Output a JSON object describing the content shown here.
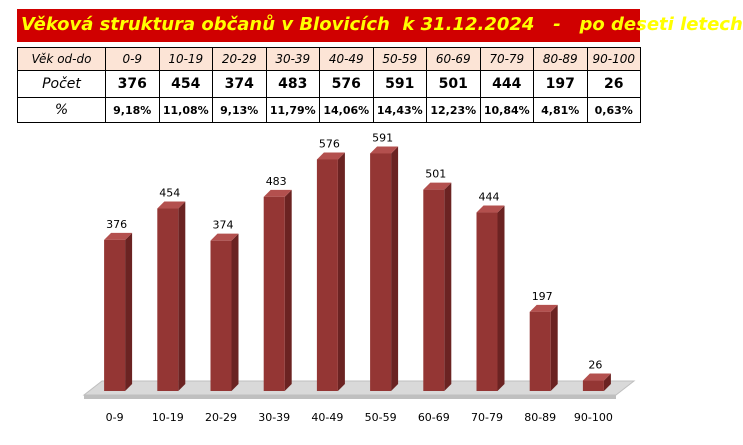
{
  "title": "Věková struktura občanů v Blovicích  k 31.12.2024   -   po deseti letech",
  "table": {
    "head_label": "Věk od-do",
    "count_label": "Počet",
    "pct_label": "%",
    "groups": [
      "0-9",
      "10-19",
      "20-29",
      "30-39",
      "40-49",
      "50-59",
      "60-69",
      "70-79",
      "80-89",
      "90-100"
    ],
    "counts": [
      "376",
      "454",
      "374",
      "483",
      "576",
      "591",
      "501",
      "444",
      "197",
      "26"
    ],
    "percents": [
      "9,18%",
      "11,08%",
      "9,13%",
      "11,79%",
      "14,06%",
      "14,43%",
      "12,23%",
      "10,84%",
      "4,81%",
      "0,63%"
    ]
  },
  "chart_data": {
    "type": "bar",
    "categories": [
      "0-9",
      "10-19",
      "20-29",
      "30-39",
      "40-49",
      "50-59",
      "60-69",
      "70-79",
      "80-89",
      "90-100"
    ],
    "values": [
      376,
      454,
      374,
      483,
      576,
      591,
      501,
      444,
      197,
      26
    ],
    "data_labels": [
      "376",
      "454",
      "374",
      "483",
      "576",
      "591",
      "501",
      "444",
      "197",
      "26"
    ],
    "title": "",
    "xlabel": "",
    "ylabel": "",
    "ylim": [
      0,
      640
    ],
    "grid": false,
    "legend": "none",
    "style": "3d-column"
  },
  "colors": {
    "title_bg": "#d00000",
    "title_text": "#ffff00",
    "header_bg": "#fce4d6",
    "bar_front": "#943634",
    "bar_side": "#6b2322",
    "bar_top": "#b3504e",
    "floor": "#d9d9d9"
  }
}
